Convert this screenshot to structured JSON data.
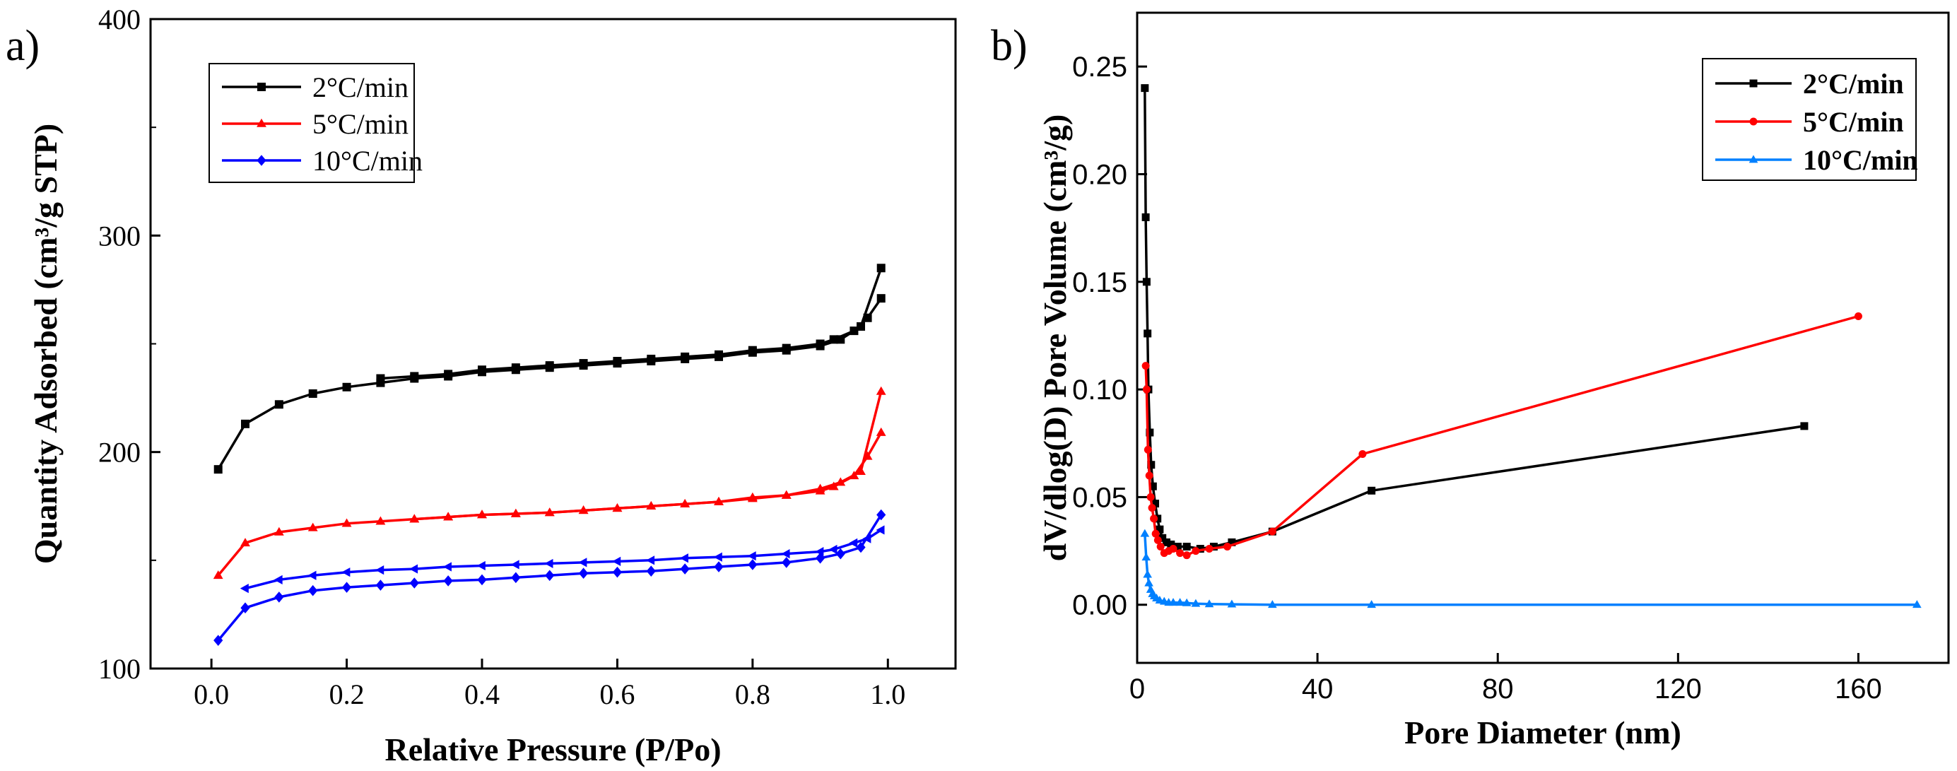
{
  "chart_data": [
    {
      "panel": "a)",
      "type": "line",
      "xlabel": "Relative Pressure (P/Po)",
      "ylabel": "Quantity Adsorbed (cm³/g STP)",
      "xlim": [
        -0.09,
        1.1
      ],
      "ylim": [
        100,
        400
      ],
      "xticks": [
        0.0,
        0.2,
        0.4,
        0.6,
        0.8,
        1.0
      ],
      "xtick_labels": [
        "0.0",
        "0.2",
        "0.4",
        "0.6",
        "0.8",
        "1.0"
      ],
      "yticks": [
        100,
        200,
        300,
        400
      ],
      "ytick_labels": [
        "100",
        "200",
        "300",
        "400"
      ],
      "legend_position": "top-left",
      "series": [
        {
          "name": "2°C/min",
          "color": "#000000",
          "marker": "square",
          "adsorption": {
            "x": [
              0.01,
              0.05,
              0.1,
              0.15,
              0.2,
              0.25,
              0.3,
              0.35,
              0.4,
              0.45,
              0.5,
              0.55,
              0.6,
              0.65,
              0.7,
              0.75,
              0.8,
              0.85,
              0.9,
              0.93,
              0.96,
              0.99
            ],
            "y": [
              192,
              213,
              222,
              227,
              230,
              232,
              234,
              235,
              237,
              238,
              239,
              240,
              241,
              242,
              243,
              244,
              246,
              247,
              249,
              252,
              258,
              285
            ]
          },
          "desorption": {
            "x": [
              0.99,
              0.97,
              0.95,
              0.92,
              0.9,
              0.85,
              0.8,
              0.75,
              0.7,
              0.65,
              0.6,
              0.55,
              0.5,
              0.45,
              0.4,
              0.35,
              0.3,
              0.25
            ],
            "y": [
              271,
              262,
              256,
              252,
              250,
              248,
              247,
              245,
              244,
              243,
              242,
              241,
              240,
              239,
              238,
              236,
              235,
              234
            ]
          }
        },
        {
          "name": "5°C/min",
          "color": "#ff0000",
          "marker": "triangle",
          "adsorption": {
            "x": [
              0.01,
              0.05,
              0.1,
              0.15,
              0.2,
              0.25,
              0.3,
              0.35,
              0.4,
              0.45,
              0.5,
              0.55,
              0.6,
              0.65,
              0.7,
              0.75,
              0.8,
              0.85,
              0.9,
              0.93,
              0.96,
              0.99
            ],
            "y": [
              143,
              158,
              163,
              165,
              167,
              168,
              169,
              170,
              171,
              171.5,
              172,
              173,
              174,
              175,
              176,
              177,
              179,
              180,
              183,
              186,
              191,
              228
            ]
          },
          "desorption": {
            "x": [
              0.99,
              0.97,
              0.95,
              0.92,
              0.9,
              0.85,
              0.8,
              0.75,
              0.7,
              0.65,
              0.6,
              0.55,
              0.5,
              0.45,
              0.4,
              0.35,
              0.3
            ],
            "y": [
              209,
              198,
              189,
              184,
              182,
              180,
              178.5,
              177,
              176,
              175,
              174,
              173,
              172,
              171.5,
              171,
              170,
              169
            ]
          }
        },
        {
          "name": "10°C/min",
          "color": "#0000ff",
          "marker": "diamond",
          "adsorption": {
            "x": [
              0.01,
              0.05,
              0.1,
              0.15,
              0.2,
              0.25,
              0.3,
              0.35,
              0.4,
              0.45,
              0.5,
              0.55,
              0.6,
              0.65,
              0.7,
              0.75,
              0.8,
              0.85,
              0.9,
              0.93,
              0.96,
              0.99
            ],
            "y": [
              113,
              128,
              133,
              136,
              137.5,
              138.5,
              139.5,
              140.5,
              141,
              142,
              143,
              144,
              144.5,
              145,
              146,
              147,
              148,
              149,
              151,
              153,
              156,
              171
            ]
          },
          "desorption": {
            "x": [
              0.99,
              0.97,
              0.95,
              0.92,
              0.9,
              0.85,
              0.8,
              0.75,
              0.7,
              0.65,
              0.6,
              0.55,
              0.5,
              0.45,
              0.4,
              0.35,
              0.3,
              0.25,
              0.2,
              0.15,
              0.1,
              0.05
            ],
            "y": [
              164,
              160,
              158,
              155,
              154,
              153,
              152,
              151.5,
              151,
              150,
              149.5,
              149,
              148.5,
              148,
              147.5,
              147,
              146,
              145.5,
              144.5,
              143,
              141,
              137
            ]
          }
        }
      ]
    },
    {
      "panel": "b)",
      "type": "line",
      "xlabel": "Pore Diameter (nm)",
      "ylabel": "dV/dlog(D) Pore Volume (cm³/g)",
      "xlim": [
        0,
        180
      ],
      "ylim": [
        -0.027,
        0.275
      ],
      "xticks": [
        0,
        40,
        80,
        120,
        160
      ],
      "xtick_labels": [
        "0",
        "40",
        "80",
        "120",
        "160"
      ],
      "yticks": [
        0.0,
        0.05,
        0.1,
        0.15,
        0.2,
        0.25
      ],
      "ytick_labels": [
        "0.00",
        "0.05",
        "0.10",
        "0.15",
        "0.20",
        "0.25"
      ],
      "legend_position": "top-right",
      "series": [
        {
          "name": "2°C/min",
          "color": "#000000",
          "marker": "square",
          "x": [
            1.7,
            1.9,
            2.1,
            2.3,
            2.5,
            2.8,
            3.1,
            3.5,
            4,
            4.5,
            5,
            5.6,
            6.5,
            7.5,
            9,
            11,
            14,
            17,
            21,
            30,
            52,
            148
          ],
          "y": [
            0.24,
            0.18,
            0.15,
            0.126,
            0.1,
            0.08,
            0.065,
            0.055,
            0.047,
            0.04,
            0.035,
            0.031,
            0.029,
            0.028,
            0.027,
            0.027,
            0.026,
            0.027,
            0.029,
            0.034,
            0.053,
            0.083
          ]
        },
        {
          "name": "5°C/min",
          "color": "#ff0000",
          "marker": "circle",
          "x": [
            1.9,
            2.1,
            2.4,
            2.7,
            3,
            3.3,
            3.7,
            4.1,
            4.6,
            5.2,
            6,
            7,
            8,
            9.5,
            11,
            13,
            16,
            20,
            30,
            50,
            160
          ],
          "y": [
            0.111,
            0.1,
            0.072,
            0.06,
            0.05,
            0.045,
            0.04,
            0.033,
            0.03,
            0.027,
            0.024,
            0.025,
            0.026,
            0.024,
            0.023,
            0.025,
            0.026,
            0.027,
            0.034,
            0.07,
            0.134
          ]
        },
        {
          "name": "10°C/min",
          "color": "#0080ff",
          "marker": "triangle",
          "x": [
            1.7,
            2,
            2.3,
            2.6,
            3,
            3.4,
            3.8,
            4.3,
            5,
            6,
            7,
            8,
            9.5,
            11,
            13,
            16,
            21,
            30,
            52,
            173
          ],
          "y": [
            0.033,
            0.022,
            0.014,
            0.01,
            0.007,
            0.005,
            0.004,
            0.003,
            0.002,
            0.0015,
            0.001,
            0.001,
            0.001,
            0.0008,
            0.0005,
            0.0003,
            0.0002,
            0,
            0,
            0
          ]
        }
      ]
    }
  ]
}
